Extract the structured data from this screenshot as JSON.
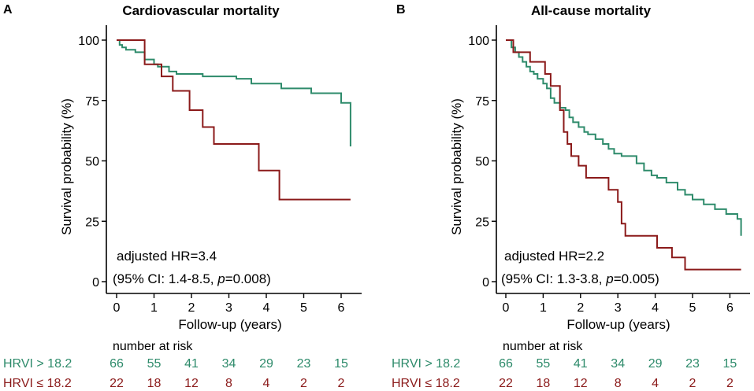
{
  "colors": {
    "high": "#2e8b6b",
    "low": "#8b1a1a",
    "axis": "#000000"
  },
  "risk_header": "number at risk",
  "chart_data": [
    {
      "type": "line",
      "panel_letter": "A",
      "title": "Cardiovascular mortality",
      "xlabel": "Follow-up (years)",
      "ylabel": "Survival probability (%)",
      "xlim": [
        0,
        6.5
      ],
      "ylim": [
        0,
        100
      ],
      "x_ticks": [
        0,
        1,
        2,
        3,
        4,
        5,
        6
      ],
      "y_ticks": [
        0,
        25,
        50,
        75,
        100
      ],
      "annotation": {
        "line1": "adjusted HR=3.4",
        "line2_prefix": "(95% CI: 1.4-8.5, ",
        "line2_p": "p",
        "line2_suffix": "=0.008)"
      },
      "series": [
        {
          "name": "HRVI > 18.2",
          "color_key": "high",
          "x": [
            0,
            0.08,
            0.15,
            0.25,
            0.5,
            0.75,
            1.0,
            1.1,
            1.4,
            1.6,
            2.3,
            3.2,
            3.6,
            4.4,
            5.2,
            6.0,
            6.25
          ],
          "y": [
            100,
            98,
            97,
            96,
            95,
            92,
            90,
            89,
            87,
            86,
            85,
            84,
            82,
            80,
            78,
            74,
            56
          ]
        },
        {
          "name": "HRVI ≤ 18.2",
          "color_key": "low",
          "x": [
            0,
            0.75,
            1.2,
            1.5,
            1.95,
            2.3,
            2.6,
            2.9,
            3.8,
            4.35,
            6.25
          ],
          "y": [
            100,
            90,
            85,
            79,
            71,
            64,
            57,
            57,
            46,
            34,
            34
          ]
        }
      ],
      "risk_table": [
        {
          "label": "HRVI > 18.2",
          "color_key": "high",
          "values": [
            66,
            55,
            41,
            34,
            29,
            23,
            15
          ]
        },
        {
          "label": "HRVI ≤ 18.2",
          "color_key": "low",
          "values": [
            22,
            18,
            12,
            8,
            4,
            2,
            2
          ]
        }
      ]
    },
    {
      "type": "line",
      "panel_letter": "B",
      "title": "All-cause mortality",
      "xlabel": "Follow-up (years)",
      "ylabel": "Survival probability (%)",
      "xlim": [
        0,
        6.5
      ],
      "ylim": [
        0,
        100
      ],
      "x_ticks": [
        0,
        1,
        2,
        3,
        4,
        5,
        6
      ],
      "y_ticks": [
        0,
        25,
        50,
        75,
        100
      ],
      "annotation": {
        "line1": "adjusted HR=2.2",
        "line2_prefix": "(95% CI: 1.3-3.8, ",
        "line2_p": "p",
        "line2_suffix": "=0.005)"
      },
      "series": [
        {
          "name": "HRVI > 18.2",
          "color_key": "high",
          "x": [
            0,
            0.15,
            0.25,
            0.35,
            0.45,
            0.55,
            0.65,
            0.75,
            0.85,
            1.0,
            1.1,
            1.2,
            1.3,
            1.45,
            1.6,
            1.7,
            1.8,
            1.95,
            2.1,
            2.2,
            2.4,
            2.6,
            2.75,
            2.9,
            3.1,
            3.5,
            3.7,
            3.9,
            4.05,
            4.3,
            4.6,
            4.8,
            5.0,
            5.3,
            5.6,
            5.9,
            6.2,
            6.3
          ],
          "y": [
            100,
            97,
            95,
            93,
            91,
            89,
            87,
            86,
            84,
            82,
            80,
            76,
            74,
            72,
            71,
            68,
            66,
            64,
            62,
            61,
            59,
            57,
            55,
            53,
            52,
            49,
            46,
            44,
            43,
            41,
            38,
            36,
            34,
            32,
            30,
            28,
            26,
            19
          ]
        },
        {
          "name": "HRVI ≤ 18.2",
          "color_key": "low",
          "x": [
            0,
            0.2,
            0.65,
            1.05,
            1.2,
            1.45,
            1.55,
            1.65,
            1.75,
            1.95,
            2.15,
            2.4,
            2.75,
            3.0,
            3.1,
            3.2,
            3.65,
            4.05,
            4.45,
            4.8,
            6.3
          ],
          "y": [
            100,
            95,
            91,
            86,
            81,
            71,
            62,
            57,
            52,
            48,
            43,
            43,
            38,
            33,
            24,
            19,
            19,
            14,
            10,
            5,
            5
          ]
        }
      ],
      "risk_table": [
        {
          "label": "HRVI > 18.2",
          "color_key": "high",
          "values": [
            66,
            55,
            41,
            34,
            29,
            23,
            15
          ]
        },
        {
          "label": "HRVI ≤ 18.2",
          "color_key": "low",
          "values": [
            22,
            18,
            12,
            8,
            4,
            2,
            2
          ]
        }
      ]
    }
  ]
}
